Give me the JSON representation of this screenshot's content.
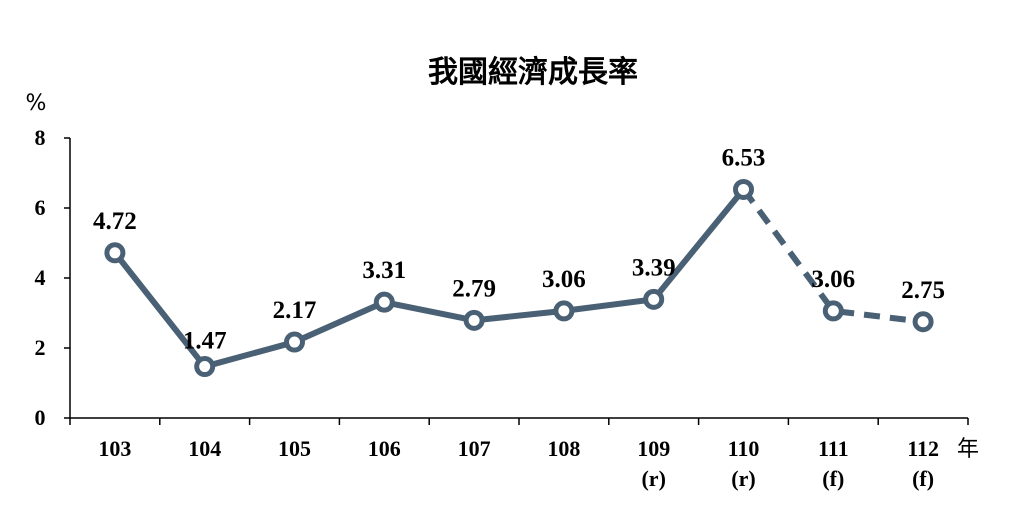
{
  "chart_data": {
    "type": "line",
    "title": "我國經濟成長率",
    "ylabel": "%",
    "xlabel": "年",
    "ylim": [
      0,
      8
    ],
    "yticks": [
      "0",
      "2",
      "4",
      "6",
      "8"
    ],
    "categories": [
      "103",
      "104",
      "105",
      "106",
      "107",
      "108",
      "109",
      "110",
      "111",
      "112"
    ],
    "category_notes": [
      "",
      "",
      "",
      "",
      "",
      "",
      "(r)",
      "(r)",
      "(f)",
      "(f)"
    ],
    "values": [
      4.72,
      1.47,
      2.17,
      3.31,
      2.79,
      3.06,
      3.39,
      6.53,
      3.06,
      2.75
    ],
    "value_labels": [
      "4.72",
      "1.47",
      "2.17",
      "3.31",
      "2.79",
      "3.06",
      "3.39",
      "6.53",
      "3.06",
      "2.75"
    ],
    "dashed_from_index": 7,
    "grid": false,
    "line_color": "#4a6175"
  }
}
